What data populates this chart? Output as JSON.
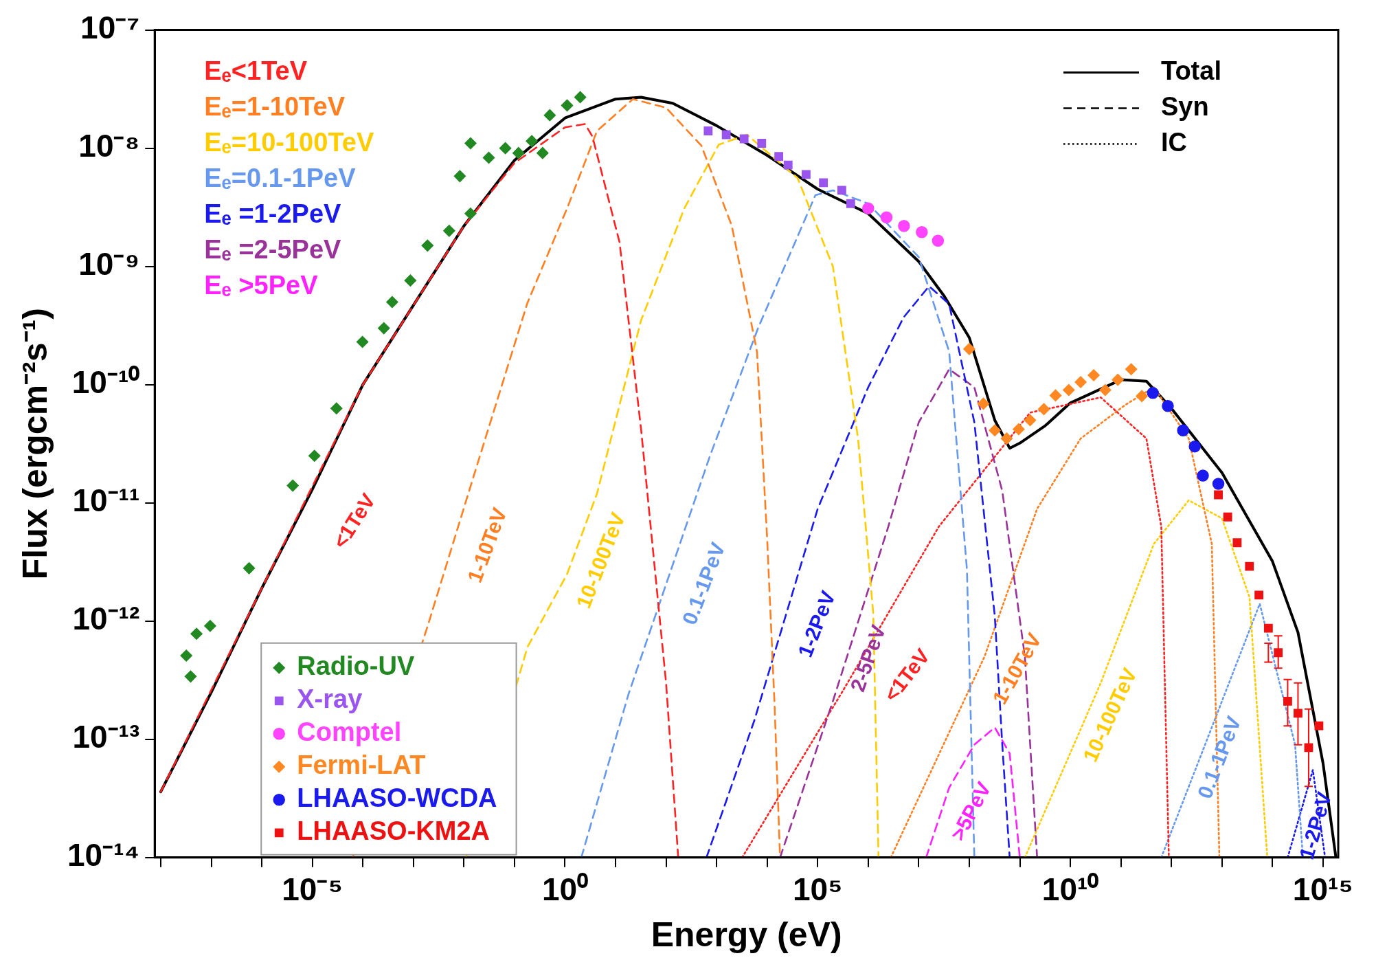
{
  "chart_data": {
    "type": "line",
    "xlabel": "Energy (eV)",
    "ylabel": "Flux (ergcm⁻²s⁻¹)",
    "log": "xy",
    "grid": false,
    "legend": "bottom left",
    "xlim": [
      7.6e-09,
      2000000000000000.0
    ],
    "xticks": [
      {
        "value": 1e-08,
        "label": null
      },
      {
        "value": 1e-07,
        "label": null
      },
      {
        "value": 1e-06,
        "label": null
      },
      {
        "value": 1e-05,
        "label": "10⁻⁵"
      },
      {
        "value": 0.0001,
        "label": null
      },
      {
        "value": 0.001,
        "label": null
      },
      {
        "value": 0.01,
        "label": null
      },
      {
        "value": 0.1,
        "label": null
      },
      {
        "value": 1,
        "label": "10⁰"
      },
      {
        "value": 10,
        "label": null
      },
      {
        "value": 100,
        "label": null
      },
      {
        "value": 1000.0,
        "label": null
      },
      {
        "value": 10000.0,
        "label": null
      },
      {
        "value": 100000.0,
        "label": "10⁵"
      },
      {
        "value": 1000000.0,
        "label": null
      },
      {
        "value": 10000000.0,
        "label": null
      },
      {
        "value": 100000000.0,
        "label": null
      },
      {
        "value": 1000000000.0,
        "label": null
      },
      {
        "value": 10000000000.0,
        "label": "10¹⁰"
      },
      {
        "value": 100000000000.0,
        "label": null
      },
      {
        "value": 1000000000000.0,
        "label": null
      },
      {
        "value": 10000000000000.0,
        "label": null
      },
      {
        "value": 100000000000000.0,
        "label": null
      },
      {
        "value": 1000000000000000.0,
        "label": "10¹⁵"
      }
    ],
    "ylim": [
      1e-14,
      1e-07
    ],
    "yticks": [
      {
        "value": 1e-14,
        "label": "10⁻¹⁴"
      },
      {
        "value": 1e-13,
        "label": "10⁻¹³"
      },
      {
        "value": 1e-12,
        "label": "10⁻¹²"
      },
      {
        "value": 1e-11,
        "label": "10⁻¹¹"
      },
      {
        "value": 1e-10,
        "label": "10⁻¹⁰"
      },
      {
        "value": 1e-09,
        "label": "10⁻⁹"
      },
      {
        "value": 1e-08,
        "label": "10⁻⁸"
      },
      {
        "value": 1e-07,
        "label": "10⁻⁷"
      }
    ],
    "annotations": [
      "Eₑ<1TeV",
      "Eₑ=1-10TeV",
      "Eₑ=10-100TeV",
      "Eₑ=0.1-1PeV",
      "Eₑ =1-2PeV",
      "Eₑ =2-5PeV",
      "Eₑ >5PeV",
      "Syn",
      "IC"
    ],
    "series": [
      {
        "name": "<1TeV",
        "line_style": "dashed",
        "color": "#ff2222",
        "x": [
          1e-08,
          1e-06,
          0.0001,
          0.01,
          0.1,
          1,
          2.5,
          3.5,
          12,
          32,
          100,
          174
        ],
        "values": [
          3.6e-14,
          1.9e-12,
          1e-10,
          2.2e-09,
          7.5e-09,
          1.5e-08,
          1.6e-08,
          1.25e-08,
          1.6e-09,
          4.2e-11,
          3e-13,
          1e-14
        ]
      },
      {
        "name": "1-10TeV",
        "line_style": "dashed",
        "color": "#ff7f22",
        "x": [
          6.3e-05,
          0.0019,
          0.017,
          0.18,
          1.1,
          4.3,
          22,
          100,
          500,
          2000,
          6300,
          10000.0,
          14000.0,
          18000.0
        ],
        "values": [
          1e-14,
          9e-13,
          1.9e-11,
          4.9e-10,
          3.1e-09,
          1.4e-08,
          2.6e-08,
          2.2e-08,
          1.05e-08,
          2.2e-09,
          1.9e-10,
          5e-12,
          2e-13,
          1e-14
        ]
      },
      {
        "name": "10-100TeV",
        "line_style": "dashed",
        "color": "#ffcc00",
        "x": [
          0.011,
          0.18,
          1.1,
          4.3,
          32,
          230,
          1100,
          4000,
          40000.0,
          200000.0,
          630000.0,
          1260000.0,
          1600000.0
        ],
        "values": [
          1e-14,
          6e-13,
          2.5e-12,
          1.2e-11,
          3.5e-10,
          3.1e-09,
          1.07e-08,
          1.3e-08,
          5.6e-09,
          1e-09,
          3.5e-11,
          1.15e-12,
          1e-14
        ]
      },
      {
        "name": "0.1-1PeV",
        "line_style": "dashed",
        "color": "#6699ee",
        "x": [
          2.1,
          18,
          740,
          6600,
          90000.0,
          200000.0,
          1000000.0,
          10000000.0,
          40000000.0,
          90000000.0,
          126000000.0
        ],
        "values": [
          1e-14,
          2.4e-13,
          2.5e-11,
          3e-10,
          4e-09,
          4.4e-09,
          3.4e-09,
          1.2e-09,
          1.9e-10,
          2.7e-12,
          1e-14
        ]
      },
      {
        "name": "1-2PeV",
        "line_style": "dashed",
        "color": "#1a1aee",
        "x": [
          630,
          5600,
          100000.0,
          1000000.0,
          5000000.0,
          16000000.0,
          40000000.0,
          126000000.0,
          320000000.0,
          450000000.0,
          630000000.0
        ],
        "values": [
          1e-14,
          1.45e-13,
          8.9e-12,
          9.5e-11,
          3.7e-10,
          6.8e-10,
          4.8e-10,
          4.8e-11,
          1.1e-12,
          9e-14,
          1e-14
        ]
      },
      {
        "name": "2-5PeV",
        "line_style": "dashed",
        "color": "#993399",
        "x": [
          18000.0,
          200000.0,
          2500000.0,
          10000000.0,
          40000000.0,
          126000000.0,
          450000000.0,
          1260000000.0,
          1800000000.0,
          2200000000.0
        ],
        "values": [
          1e-14,
          2.1e-13,
          6.3e-12,
          4.8e-11,
          1.35e-10,
          9.5e-11,
          1.26e-11,
          5e-13,
          4e-14,
          1e-14
        ]
      },
      {
        "name": ">5PeV",
        "line_style": "dashed",
        "color": "#ff22ff",
        "x": [
          14000000.0,
          40000000.0,
          126000000.0,
          320000000.0,
          630000000.0,
          1000000000.0
        ],
        "values": [
          1e-14,
          3.9e-14,
          9e-14,
          1.26e-13,
          7.6e-14,
          1e-14
        ]
      },
      {
        "name": "<1TeV",
        "line_style": "dotted",
        "color": "#ff2222",
        "x": [
          3200,
          320000.0,
          25000000.0,
          1600000000.0,
          40000000000.0,
          320000000000.0,
          630000000000.0,
          890000000000.0
        ],
        "values": [
          1e-14,
          2.6e-13,
          6.3e-12,
          5.8e-11,
          7.8e-11,
          3.5e-11,
          6.3e-12,
          1e-14
        ]
      },
      {
        "name": "1-10TeV",
        "line_style": "dotted",
        "color": "#ff7f22",
        "x": [
          2800000.0,
          200000000.0,
          2200000000.0,
          16000000000.0,
          126000000000.0,
          450000000000.0,
          2200000000000.0,
          6300000000000.0,
          8900000000000.0
        ],
        "values": [
          1e-14,
          5e-13,
          8.9e-12,
          3.5e-11,
          6.8e-11,
          9.5e-11,
          3.5e-11,
          4.5e-12,
          1e-14
        ]
      },
      {
        "name": "10-100TeV",
        "line_style": "dotted",
        "color": "#ffcc00",
        "x": [
          1260000000.0,
          40000000000.0,
          450000000000.0,
          2200000000000.0,
          10000000000000.0,
          35000000000000.0,
          79000000000000.0
        ],
        "values": [
          1e-14,
          3e-13,
          4.5e-12,
          1.05e-11,
          7.4e-12,
          1.6e-12,
          1e-14
        ]
      },
      {
        "name": "0.1-1PeV",
        "line_style": "dotted",
        "color": "#6699ee",
        "x": [
          630000000000.0,
          10000000000000.0,
          56000000000000.0,
          280000000000000.0,
          400000000000000.0
        ],
        "values": [
          1e-14,
          2.1e-13,
          1.4e-12,
          9e-14,
          1e-14
        ]
      },
      {
        "name": "1-2PeV",
        "line_style": "dotted",
        "color": "#1a1aee",
        "x": [
          200000000000000.0,
          630000000000000.0,
          1100000000000000.0
        ],
        "values": [
          1e-14,
          5.5e-14,
          1e-14
        ]
      },
      {
        "name": "Radio-UV",
        "type": "scatter",
        "marker": "diamond",
        "color": "#228822",
        "x": [
          3.2e-08,
          3.9e-08,
          5.1e-08,
          9.5e-08,
          5.6e-07,
          4.1e-06,
          1.1e-05,
          3e-05,
          9.8e-05,
          0.00026,
          0.00038,
          0.00087,
          0.0019,
          0.0051,
          0.0083,
          0.0135,
          0.0135,
          0.031,
          0.066,
          0.12,
          0.22,
          0.36,
          0.5,
          1.1,
          2
        ],
        "values": [
          5.1e-13,
          3.4e-13,
          7.8e-13,
          9.1e-13,
          2.8e-12,
          1.4e-11,
          2.5e-11,
          6.3e-11,
          2.3e-10,
          3e-10,
          5e-10,
          7.6e-10,
          1.5e-09,
          2e-09,
          5.8e-09,
          2.8e-09,
          1.1e-08,
          8.3e-09,
          1e-08,
          9.1e-09,
          1.15e-08,
          9.1e-09,
          1.9e-08,
          2.3e-08,
          2.7e-08
        ]
      },
      {
        "name": "X-ray",
        "type": "scatter",
        "marker": "square",
        "color": "#9955ee",
        "x": [
          680,
          1550,
          3500,
          7800,
          17000.0,
          26000.0,
          59000.0,
          130000.0,
          300000.0,
          450000.0
        ],
        "values": [
          1.4e-08,
          1.3e-08,
          1.2e-08,
          1.1e-08,
          8.5e-09,
          7.2e-09,
          6e-09,
          5.1e-09,
          4.4e-09,
          3.4e-09
        ]
      },
      {
        "name": "Comptel",
        "type": "scatter",
        "marker": "circle",
        "color": "#ff44ff",
        "x": [
          1000000.0,
          2300000.0,
          5100000.0,
          11500000.0,
          24000000.0
        ],
        "values": [
          3.1e-09,
          2.6e-09,
          2.2e-09,
          1.95e-09,
          1.65e-09
        ]
      },
      {
        "name": "Fermi-LAT",
        "type": "scatter",
        "marker": "diamond",
        "color": "#ff8822",
        "x": [
          100000000.0,
          190000000.0,
          320000000.0,
          550000000.0,
          950000000.0,
          1600000000.0,
          3000000000.0,
          5100000000.0,
          9300000000.0,
          16000000000.0,
          29000000000.0,
          49000000000.0,
          87000000000.0,
          160000000000.0,
          260000000000.0
        ],
        "values": [
          2e-10,
          6.9e-11,
          4.1e-11,
          3.5e-11,
          4.2e-11,
          5e-11,
          6.2e-11,
          8.1e-11,
          9e-11,
          1.05e-10,
          1.2e-10,
          9e-11,
          1.1e-10,
          1.35e-10,
          8e-11
        ]
      },
      {
        "name": "LHAASO-WCDA",
        "type": "scatter",
        "marker": "circle",
        "color": "#1a1aee",
        "x": [
          430000000000.0,
          850000000000.0,
          1700000000000.0,
          2900000000000.0,
          4200000000000.0,
          8500000000000.0
        ],
        "values": [
          8.5e-11,
          6.6e-11,
          4.1e-11,
          3e-11,
          1.7e-11,
          1.45e-11
        ]
      },
      {
        "name": "LHAASO-KM2A",
        "type": "scatter",
        "marker": "square",
        "color": "#ee1111",
        "x": [
          8500000000000.0,
          13000000000000.0,
          20000000000000.0,
          35000000000000.0,
          54000000000000.0,
          83000000000000.0,
          130000000000000.0,
          200000000000000.0,
          320000000000000.0,
          520000000000000.0,
          830000000000000.0
        ],
        "values": [
          1.17e-11,
          7.6e-12,
          4.6e-12,
          2.9e-12,
          1.66e-12,
          8.7e-13,
          5.4e-13,
          2.1e-13,
          1.66e-13,
          8.5e-14,
          1.3e-13
        ],
        "errors": [
          null,
          null,
          null,
          null,
          null,
          [
            4.5e-13,
            6.5e-13
          ],
          [
            4e-13,
            7.5e-13
          ],
          [
            1.3e-13,
            3.2e-13
          ],
          [
            9e-14,
            3e-13
          ],
          [
            4e-14,
            1.8e-13
          ],
          null
        ]
      },
      {
        "name": "Total",
        "line_style": "solid",
        "color": "#000000",
        "x": [
          1e-08,
          1e-07,
          1e-06,
          1e-05,
          0.0001,
          0.001,
          0.01,
          0.1,
          1,
          10,
          32,
          135,
          1000,
          10000.0,
          100000.0,
          1000000.0,
          10000000.0,
          32000000.0,
          100000000.0,
          320000000.0,
          630000000.0,
          1000000000.0,
          3200000000.0,
          10000000000.0,
          100000000000.0,
          320000000000.0,
          1000000000000.0,
          10000000000000.0,
          100000000000000.0,
          320000000000000.0,
          1000000000000000.0,
          1800000000000000.0
        ],
        "values": [
          3.6e-14,
          2.5e-13,
          1.9e-12,
          1.3e-11,
          1e-10,
          4.7e-10,
          2.2e-09,
          7.9e-09,
          1.8e-08,
          2.6e-08,
          2.7e-08,
          2.4e-08,
          1.55e-08,
          8.7e-09,
          4.5e-09,
          2.8e-09,
          1.1e-09,
          5.6e-10,
          2.5e-10,
          5e-11,
          2.9e-11,
          3.2e-11,
          4.5e-11,
          7e-11,
          1.1e-10,
          1.07e-10,
          6.3e-11,
          1.8e-11,
          3.2e-12,
          8e-13,
          6.3e-14,
          1e-14
        ]
      }
    ]
  }
}
